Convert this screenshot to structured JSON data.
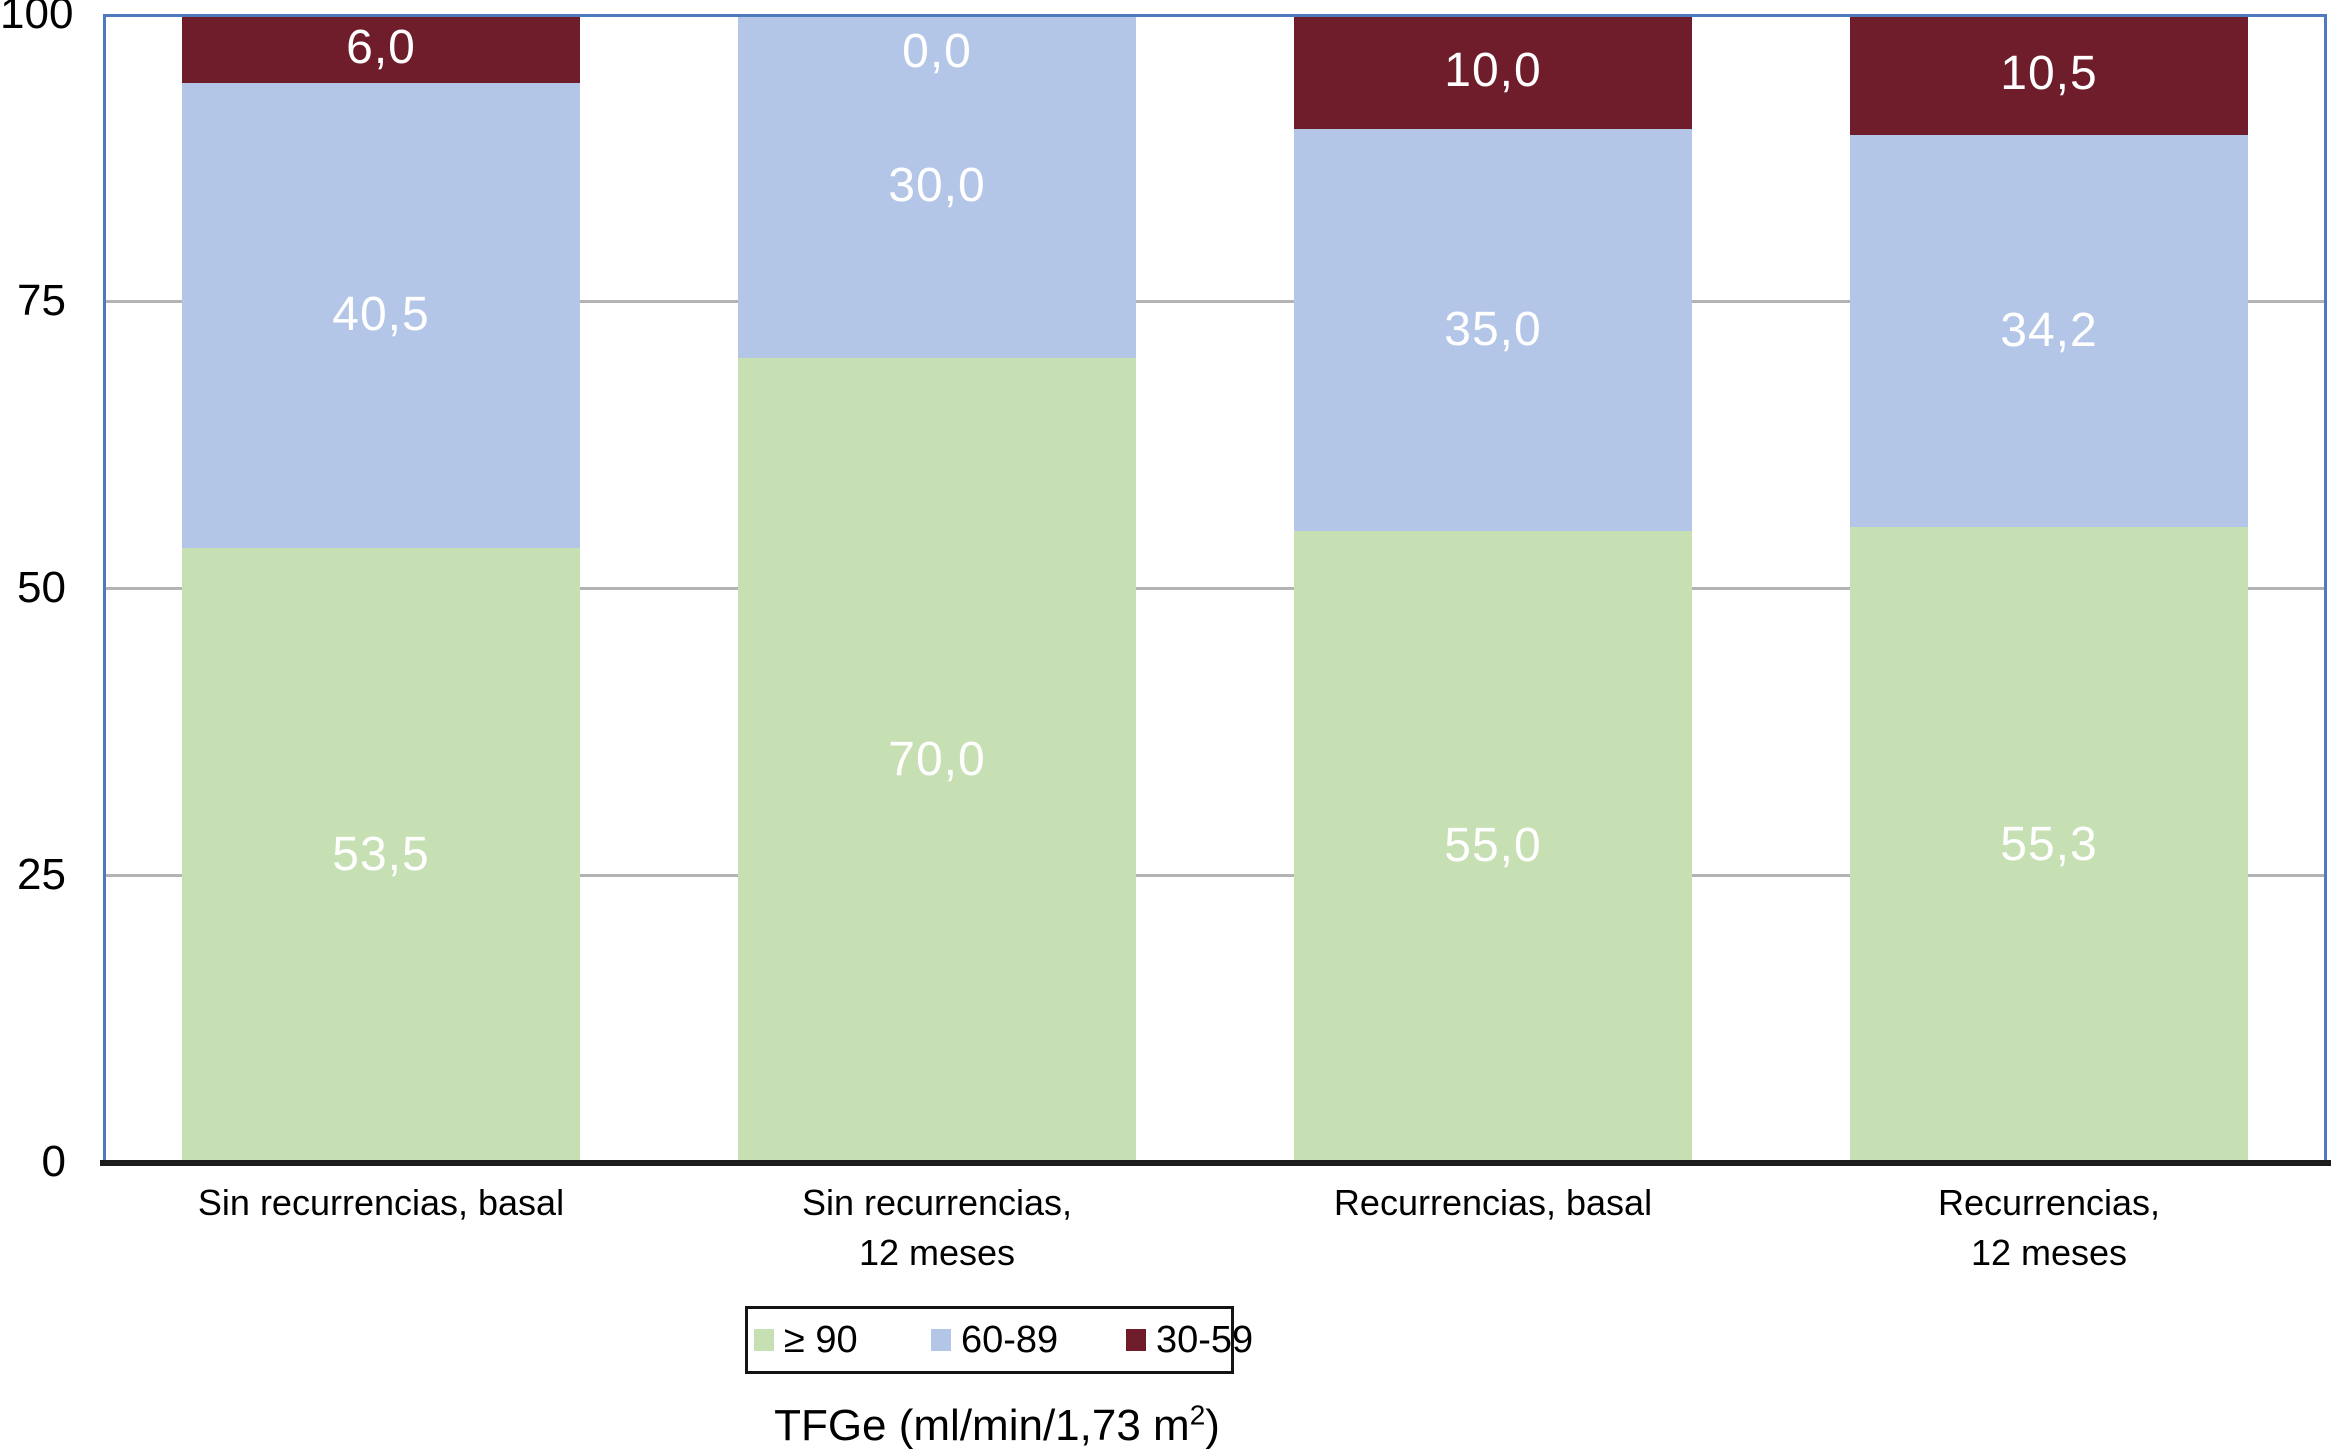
{
  "chart_data": {
    "type": "bar",
    "stacked": true,
    "orientation": "vertical",
    "categories": [
      "Sin recurrencias, basal",
      "Sin recurrencias,\n12 meses",
      "Recurrencias, basal",
      "Recurrencias,\n12 meses"
    ],
    "series": [
      {
        "name": "≥ 90",
        "color": "#c6e0b4",
        "values": [
          53.5,
          70.0,
          55.0,
          55.3
        ],
        "display_labels": [
          "53,5",
          "70,0",
          "55,0",
          "55,3"
        ]
      },
      {
        "name": "60-89",
        "color": "#b4c6e7",
        "values": [
          40.5,
          30.0,
          35.0,
          34.2
        ],
        "display_labels": [
          "40,5",
          "30,0",
          "35,0",
          "34,2"
        ]
      },
      {
        "name": "30-59",
        "color": "#6f1d2b",
        "values": [
          6.0,
          0.0,
          10.0,
          10.5
        ],
        "display_labels": [
          "6,0",
          "0,0",
          "10,0",
          "10,5"
        ]
      }
    ],
    "value_label_color": "#ffffff",
    "ylim": [
      0,
      100
    ],
    "yticks": [
      0,
      25,
      50,
      75,
      100
    ],
    "ytick_labels": [
      "0",
      "25",
      "50",
      "75",
      "100"
    ],
    "grid": true,
    "gridline_color": "#b3b3b3",
    "plot_border_color": "#4f7ac0",
    "axis_line_color": "#1c1c1c",
    "xlabel": "TFGe (ml/min/1,73 m²)",
    "legend_position": "bottom",
    "legend": {
      "entries": [
        {
          "label": "≥ 90",
          "color": "#c6e0b4"
        },
        {
          "label": "60-89",
          "color": "#b4c6e7"
        },
        {
          "label": "30-59",
          "color": "#6f1d2b"
        }
      ]
    }
  },
  "axis_title": {
    "prefix": "TFGe (ml/min/1,73 m",
    "sup": "2",
    "suffix": ")"
  }
}
